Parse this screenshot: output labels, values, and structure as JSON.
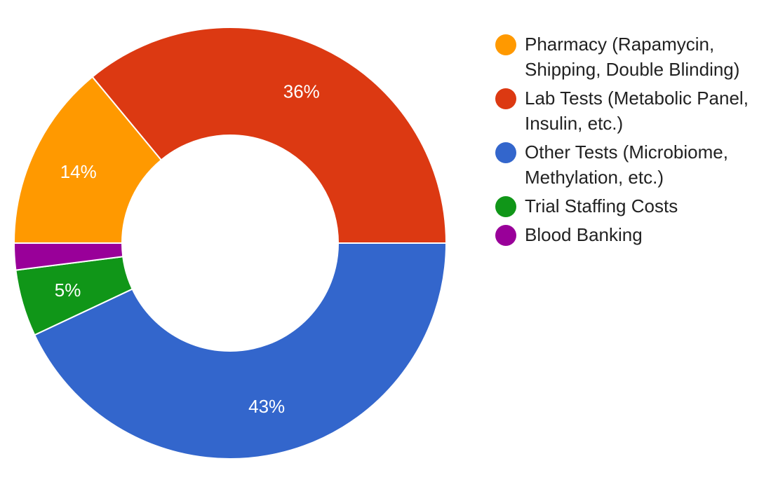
{
  "chart_data": {
    "type": "pie",
    "variant": "donut",
    "title": "",
    "legend_position": "right",
    "slices": [
      {
        "label": "Pharmacy (Rapamycin, Shipping, Double Blinding)",
        "value": 14,
        "display": "14%",
        "color": "#FF9900"
      },
      {
        "label": "Lab Tests (Metabolic Panel, Insulin, etc.)",
        "value": 36,
        "display": "36%",
        "color": "#DC3912"
      },
      {
        "label": "Other Tests (Microbiome, Methylation, etc.)",
        "value": 43,
        "display": "43%",
        "color": "#3366CC"
      },
      {
        "label": "Trial Staffing Costs",
        "value": 5,
        "display": "5%",
        "color": "#109618"
      },
      {
        "label": "Blood Banking",
        "value": 2,
        "display": "",
        "color": "#990099"
      }
    ]
  }
}
